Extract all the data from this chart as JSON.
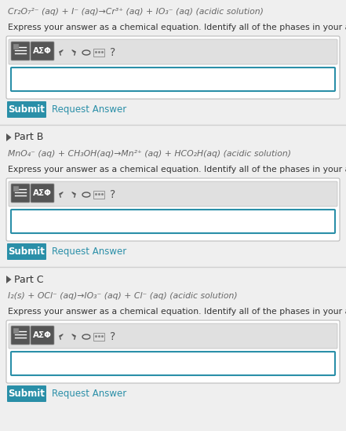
{
  "bg_color": "#efefef",
  "white": "#ffffff",
  "teal": "#2a8fa8",
  "teal_dark": "#1e7a8f",
  "gray_divider": "#d0d0d0",
  "gray_toolbar_bg": "#e0e0e0",
  "gray_toolbar_border": "#bbbbbb",
  "gray_btn_dark": "#555555",
  "gray_btn_mid": "#888888",
  "gray_icon": "#666666",
  "text_dark": "#333333",
  "text_mid": "#555555",
  "text_eq": "#666666",
  "link_color": "#2a8fa8",
  "part_a_eq_line1": "Cr₂O₇²⁻ (aq) + I⁻ (aq)→Cr³⁺ (aq) + IO₃⁻ (aq) (acidic solution)",
  "part_b_eq_line1": "MnO₄⁻ (aq) + CH₃OH(aq)→Mn²⁺ (aq) + HCO₂H(aq) (acidic solution)",
  "part_c_eq_line1": "I₂(s) + OCl⁻ (aq)→IO₃⁻ (aq) + Cl⁻ (aq) (acidic solution)",
  "instruction": "Express your answer as a chemical equation. Identify all of the phases in your answer.",
  "part_b_label": "Part B",
  "part_c_label": "Part C",
  "submit_text": "Submit",
  "request_text": "Request Answer",
  "figw": 4.41,
  "figh": 5.49,
  "dpi": 100
}
